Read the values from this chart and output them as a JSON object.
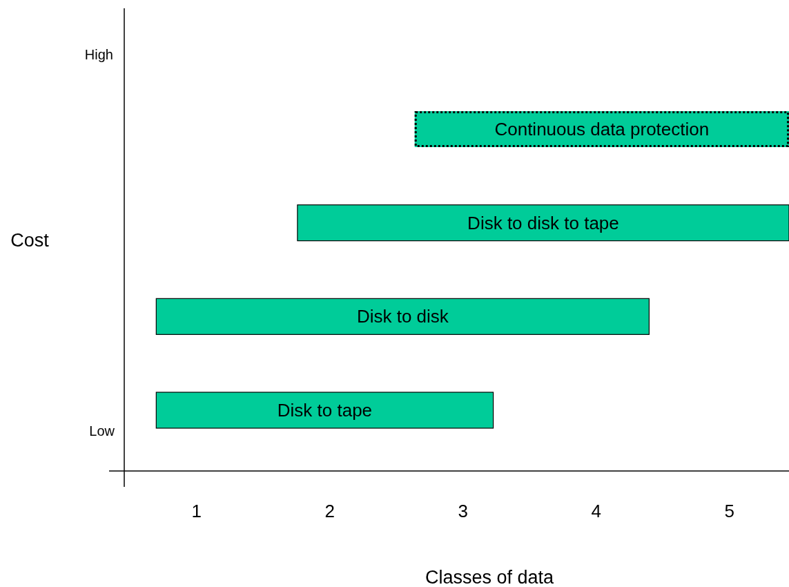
{
  "chart_data": {
    "type": "bar",
    "orientation": "horizontal",
    "xlabel": "Classes of data",
    "ylabel": "Cost",
    "categories": [
      "Continuous data protection",
      "Disk to disk to tape",
      "Disk to disk",
      "Disk to tape"
    ],
    "series": [
      {
        "color": "#00cc99",
        "values": [
          2.81,
          3.69,
          3.7,
          2.53
        ],
        "base": [
          2.64,
          1.76,
          0.7,
          0.7
        ]
      }
    ],
    "xlim": [
      0.46,
      5.45
    ],
    "xticks": [
      1,
      2,
      3,
      4,
      5
    ],
    "annotations": [
      "High",
      "Low"
    ],
    "grid": false
  }
}
